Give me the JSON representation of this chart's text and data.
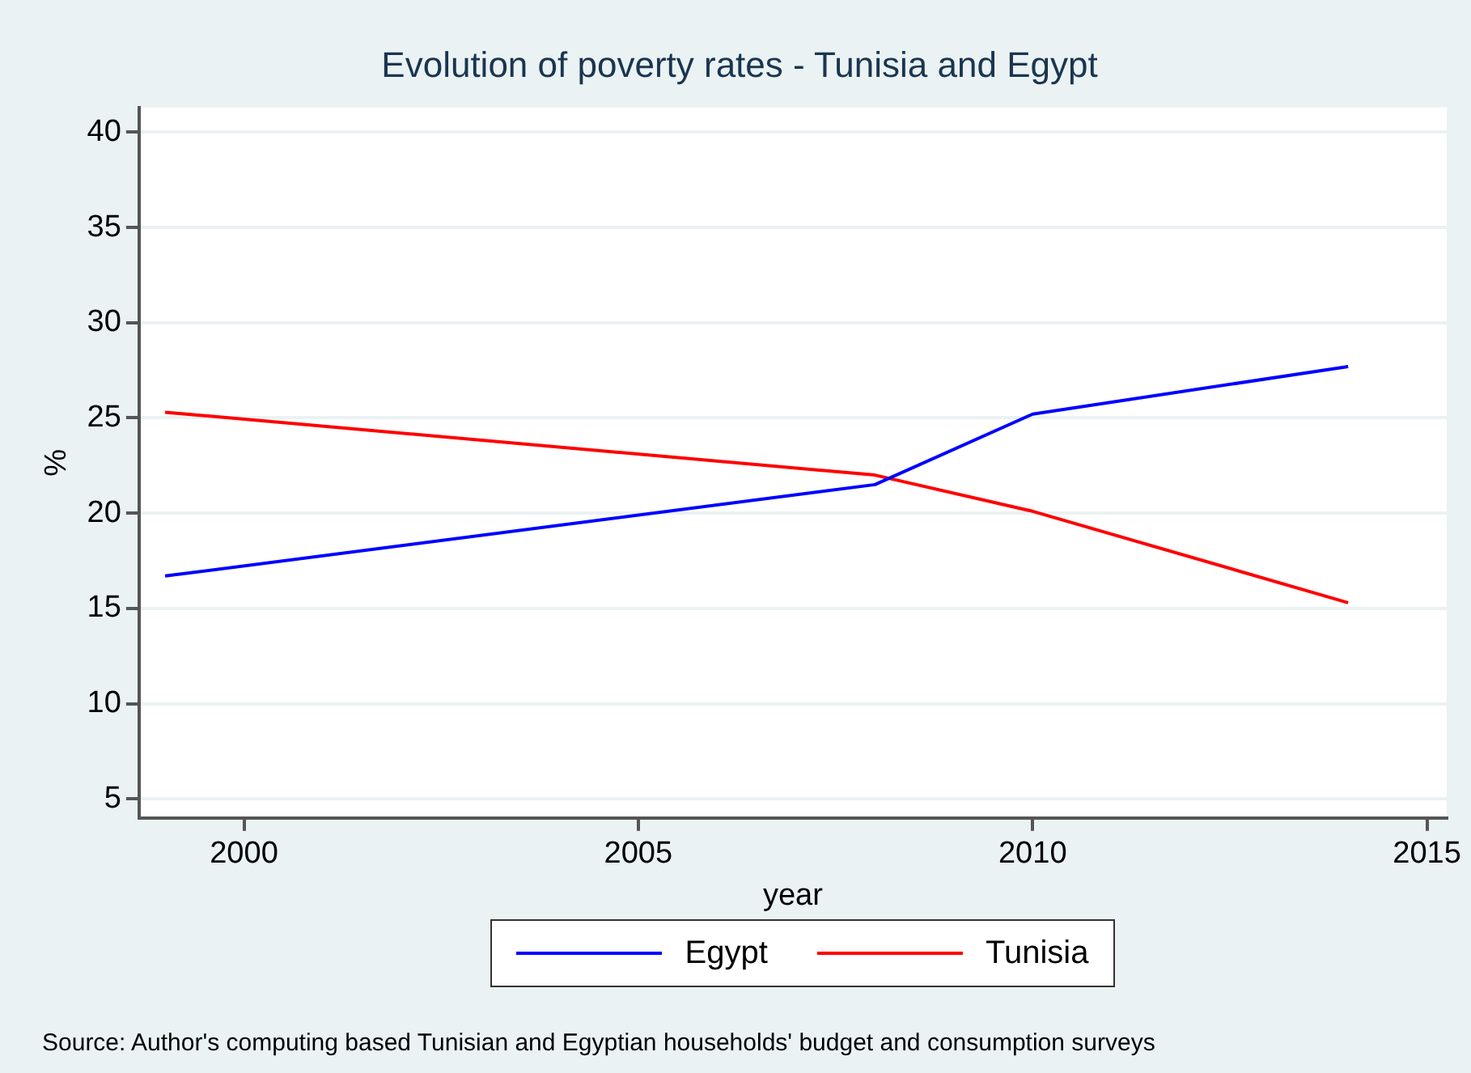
{
  "chart_data": {
    "type": "line",
    "title": "Evolution of poverty rates - Tunisia and Egypt",
    "xlabel": "year",
    "ylabel": "%",
    "x": [
      1999,
      2008,
      2010,
      2014
    ],
    "series": [
      {
        "name": "Egypt",
        "color": "#0000ff",
        "values": [
          16.7,
          21.5,
          25.2,
          27.7
        ]
      },
      {
        "name": "Tunisia",
        "color": "#ff0000",
        "values": [
          25.3,
          22.0,
          20.1,
          15.3
        ]
      }
    ],
    "xlim": [
      1998.67,
      2015.25
    ],
    "xticks": [
      2000,
      2005,
      2010,
      2015
    ],
    "ylim": [
      4,
      41.3
    ],
    "yticks": [
      5,
      10,
      15,
      20,
      25,
      30,
      35,
      40
    ],
    "grid": "y",
    "legend": "bottom",
    "marker": "none",
    "line_style": "solid",
    "annotations": [
      "Source: Author's computing based Tunisian and Egyptian households' budget and consumption surveys"
    ]
  }
}
